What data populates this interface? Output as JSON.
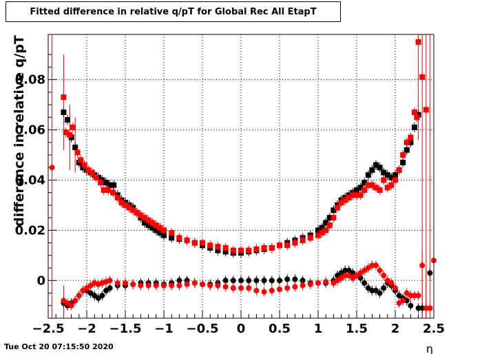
{
  "title": "Fitted difference in relative q/pT  for Global Rec All EtapT",
  "timestamp": "Tue Oct 20 07:15:50 2020",
  "colors": {
    "black_series": "#000000",
    "red_series": "#ff0000",
    "grid": "#000000"
  },
  "chart_data": {
    "type": "scatter",
    "title": "Fitted difference in relative q/pT  for Global Rec All EtapT",
    "xlabel": "η",
    "ylabel": "difference in relative q/pT",
    "xlim": [
      -2.5,
      2.5
    ],
    "ylim": [
      -0.015,
      0.098
    ],
    "xticks": [
      -2.5,
      -2,
      -1.5,
      -1,
      -0.5,
      0,
      0.5,
      1,
      1.5,
      2,
      2.5
    ],
    "xtick_labels": [
      "−2.5",
      "−2",
      "−1.5",
      "−1",
      "−0.5",
      "0",
      "0.5",
      "1",
      "1.5",
      "2",
      "2.5"
    ],
    "yticks": [
      0,
      0.02,
      0.04,
      0.06,
      0.08
    ],
    "ytick_labels": [
      "0",
      "0.02",
      "0.04",
      "0.06",
      "0.08"
    ],
    "grid": true,
    "series": [
      {
        "marker": "square",
        "color": "#000000",
        "points": [
          [
            -2.3,
            0.067
          ],
          [
            -2.25,
            0.064
          ],
          [
            -2.2,
            0.057
          ],
          [
            -2.15,
            0.053
          ],
          [
            -2.1,
            0.047
          ],
          [
            -2.05,
            0.045
          ],
          [
            -2.0,
            0.044
          ],
          [
            -1.95,
            0.043
          ],
          [
            -1.9,
            0.042
          ],
          [
            -1.85,
            0.041
          ],
          [
            -1.8,
            0.04
          ],
          [
            -1.75,
            0.039
          ],
          [
            -1.7,
            0.038
          ],
          [
            -1.65,
            0.038
          ],
          [
            -1.6,
            0.034
          ],
          [
            -1.55,
            0.032
          ],
          [
            -1.5,
            0.031
          ],
          [
            -1.45,
            0.03
          ],
          [
            -1.4,
            0.029
          ],
          [
            -1.35,
            0.027
          ],
          [
            -1.3,
            0.025
          ],
          [
            -1.25,
            0.023
          ],
          [
            -1.2,
            0.022
          ],
          [
            -1.15,
            0.021
          ],
          [
            -1.1,
            0.02
          ],
          [
            -1.05,
            0.019
          ],
          [
            -1.0,
            0.018
          ],
          [
            -0.9,
            0.017
          ],
          [
            -0.8,
            0.0165
          ],
          [
            -0.7,
            0.016
          ],
          [
            -0.6,
            0.015
          ],
          [
            -0.5,
            0.014
          ],
          [
            -0.4,
            0.013
          ],
          [
            -0.3,
            0.012
          ],
          [
            -0.2,
            0.0115
          ],
          [
            -0.1,
            0.011
          ],
          [
            0.0,
            0.011
          ],
          [
            0.1,
            0.0115
          ],
          [
            0.2,
            0.012
          ],
          [
            0.3,
            0.0125
          ],
          [
            0.4,
            0.013
          ],
          [
            0.5,
            0.014
          ],
          [
            0.6,
            0.015
          ],
          [
            0.7,
            0.016
          ],
          [
            0.8,
            0.017
          ],
          [
            0.9,
            0.018
          ],
          [
            1.0,
            0.02
          ],
          [
            1.05,
            0.021
          ],
          [
            1.1,
            0.023
          ],
          [
            1.15,
            0.025
          ],
          [
            1.2,
            0.028
          ],
          [
            1.25,
            0.03
          ],
          [
            1.3,
            0.032
          ],
          [
            1.35,
            0.033
          ],
          [
            1.4,
            0.034
          ],
          [
            1.45,
            0.035
          ],
          [
            1.5,
            0.036
          ],
          [
            1.55,
            0.037
          ],
          [
            1.6,
            0.039
          ],
          [
            1.65,
            0.042
          ],
          [
            1.7,
            0.044
          ],
          [
            1.75,
            0.046
          ],
          [
            1.8,
            0.045
          ],
          [
            1.85,
            0.043
          ],
          [
            1.9,
            0.042
          ],
          [
            1.95,
            0.041
          ],
          [
            2.0,
            0.042
          ],
          [
            2.05,
            0.044
          ],
          [
            2.1,
            0.047
          ],
          [
            2.15,
            0.052
          ],
          [
            2.2,
            0.055
          ],
          [
            2.25,
            0.061
          ],
          [
            2.3,
            0.066
          ]
        ]
      },
      {
        "marker": "square",
        "color": "#ff0000",
        "points": [
          [
            -2.3,
            0.073
          ],
          [
            -2.27,
            0.059
          ],
          [
            -2.22,
            0.058
          ],
          [
            -2.18,
            0.061
          ],
          [
            -2.12,
            0.051
          ],
          [
            -2.08,
            0.048
          ],
          [
            -2.03,
            0.046
          ],
          [
            -1.98,
            0.044
          ],
          [
            -1.93,
            0.043
          ],
          [
            -1.88,
            0.041
          ],
          [
            -1.82,
            0.039
          ],
          [
            -1.78,
            0.036
          ],
          [
            -1.72,
            0.036
          ],
          [
            -1.66,
            0.035
          ],
          [
            -1.6,
            0.033
          ],
          [
            -1.55,
            0.031
          ],
          [
            -1.5,
            0.03
          ],
          [
            -1.45,
            0.029
          ],
          [
            -1.4,
            0.028
          ],
          [
            -1.35,
            0.027
          ],
          [
            -1.3,
            0.026
          ],
          [
            -1.25,
            0.025
          ],
          [
            -1.2,
            0.024
          ],
          [
            -1.15,
            0.023
          ],
          [
            -1.1,
            0.022
          ],
          [
            -1.05,
            0.021
          ],
          [
            -1.0,
            0.02
          ],
          [
            -0.9,
            0.019
          ],
          [
            -0.8,
            0.017
          ],
          [
            -0.7,
            0.016
          ],
          [
            -0.6,
            0.015
          ],
          [
            -0.5,
            0.015
          ],
          [
            -0.4,
            0.014
          ],
          [
            -0.3,
            0.0135
          ],
          [
            -0.2,
            0.013
          ],
          [
            -0.1,
            0.012
          ],
          [
            0.0,
            0.012
          ],
          [
            0.1,
            0.012
          ],
          [
            0.2,
            0.0125
          ],
          [
            0.3,
            0.013
          ],
          [
            0.4,
            0.013
          ],
          [
            0.5,
            0.014
          ],
          [
            0.6,
            0.014
          ],
          [
            0.7,
            0.015
          ],
          [
            0.8,
            0.016
          ],
          [
            0.9,
            0.017
          ],
          [
            1.0,
            0.018
          ],
          [
            1.05,
            0.019
          ],
          [
            1.1,
            0.02
          ],
          [
            1.15,
            0.022
          ],
          [
            1.2,
            0.025
          ],
          [
            1.25,
            0.029
          ],
          [
            1.3,
            0.031
          ],
          [
            1.35,
            0.032
          ],
          [
            1.4,
            0.033
          ],
          [
            1.45,
            0.034
          ],
          [
            1.5,
            0.034
          ],
          [
            1.55,
            0.034
          ],
          [
            1.6,
            0.036
          ],
          [
            1.65,
            0.038
          ],
          [
            1.7,
            0.038
          ],
          [
            1.75,
            0.037
          ],
          [
            1.8,
            0.036
          ],
          [
            1.85,
            0.04
          ],
          [
            1.9,
            0.037
          ],
          [
            1.95,
            0.038
          ],
          [
            2.0,
            0.04
          ],
          [
            2.05,
            0.044
          ],
          [
            2.1,
            0.05
          ],
          [
            2.15,
            0.055
          ],
          [
            2.2,
            0.057
          ],
          [
            2.25,
            0.067
          ],
          [
            2.28,
            0.065
          ],
          [
            2.3,
            0.095
          ],
          [
            2.35,
            0.081
          ],
          [
            2.4,
            0.068
          ]
        ]
      },
      {
        "marker": "circle",
        "color": "#000000",
        "points": [
          [
            -2.3,
            -0.009
          ],
          [
            -2.25,
            -0.01
          ],
          [
            -2.2,
            -0.009
          ],
          [
            -2.15,
            -0.008
          ],
          [
            -2.1,
            -0.006
          ],
          [
            -2.05,
            -0.004
          ],
          [
            -2.0,
            -0.004
          ],
          [
            -1.95,
            -0.005
          ],
          [
            -1.9,
            -0.006
          ],
          [
            -1.85,
            -0.007
          ],
          [
            -1.8,
            -0.006
          ],
          [
            -1.75,
            -0.004
          ],
          [
            -1.7,
            -0.003
          ],
          [
            -1.6,
            -0.002
          ],
          [
            -1.5,
            -0.002
          ],
          [
            -1.4,
            -0.0015
          ],
          [
            -1.3,
            -0.001
          ],
          [
            -1.2,
            -0.001
          ],
          [
            -1.1,
            -0.001
          ],
          [
            -1.0,
            -0.0015
          ],
          [
            -0.9,
            -0.001
          ],
          [
            -0.8,
            0.0
          ],
          [
            -0.7,
            0.0
          ],
          [
            -0.6,
            -0.001
          ],
          [
            -0.5,
            -0.0015
          ],
          [
            -0.4,
            -0.0015
          ],
          [
            -0.3,
            -0.001
          ],
          [
            -0.2,
            0.0
          ],
          [
            -0.1,
            0.0
          ],
          [
            0.0,
            0.0
          ],
          [
            0.1,
            0.0
          ],
          [
            0.2,
            0.0
          ],
          [
            0.3,
            0.0
          ],
          [
            0.4,
            0.0
          ],
          [
            0.5,
            0.0
          ],
          [
            0.6,
            0.0005
          ],
          [
            0.7,
            0.0005
          ],
          [
            0.8,
            0.0
          ],
          [
            0.9,
            -0.001
          ],
          [
            1.0,
            -0.001
          ],
          [
            1.1,
            -0.001
          ],
          [
            1.2,
            0.0
          ],
          [
            1.25,
            0.002
          ],
          [
            1.3,
            0.003
          ],
          [
            1.35,
            0.004
          ],
          [
            1.4,
            0.004
          ],
          [
            1.45,
            0.003
          ],
          [
            1.5,
            0.002
          ],
          [
            1.55,
            0.001
          ],
          [
            1.6,
            -0.001
          ],
          [
            1.65,
            -0.003
          ],
          [
            1.7,
            -0.004
          ],
          [
            1.75,
            -0.004
          ],
          [
            1.8,
            -0.005
          ],
          [
            1.85,
            -0.003
          ],
          [
            1.9,
            -0.001
          ],
          [
            1.95,
            -0.002
          ],
          [
            2.0,
            -0.004
          ],
          [
            2.05,
            -0.006
          ],
          [
            2.1,
            -0.007
          ],
          [
            2.15,
            -0.008
          ],
          [
            2.2,
            -0.01
          ],
          [
            2.3,
            -0.011
          ],
          [
            2.35,
            -0.011
          ],
          [
            2.45,
            0.003
          ]
        ]
      },
      {
        "marker": "circle",
        "color": "#ff0000",
        "points": [
          [
            -2.45,
            0.045
          ],
          [
            -2.3,
            -0.008
          ],
          [
            -2.25,
            -0.009
          ],
          [
            -2.2,
            -0.01
          ],
          [
            -2.15,
            -0.008
          ],
          [
            -2.1,
            -0.006
          ],
          [
            -2.05,
            -0.004
          ],
          [
            -2.0,
            -0.003
          ],
          [
            -1.95,
            -0.002
          ],
          [
            -1.9,
            -0.001
          ],
          [
            -1.85,
            -0.0015
          ],
          [
            -1.8,
            -0.001
          ],
          [
            -1.75,
            -0.0005
          ],
          [
            -1.7,
            0.0
          ],
          [
            -1.6,
            -0.001
          ],
          [
            -1.5,
            -0.001
          ],
          [
            -1.4,
            -0.0015
          ],
          [
            -1.3,
            -0.002
          ],
          [
            -1.2,
            -0.002
          ],
          [
            -1.1,
            -0.002
          ],
          [
            -1.0,
            -0.002
          ],
          [
            -0.9,
            -0.002
          ],
          [
            -0.8,
            -0.002
          ],
          [
            -0.7,
            -0.0015
          ],
          [
            -0.6,
            -0.001
          ],
          [
            -0.5,
            -0.0015
          ],
          [
            -0.4,
            -0.002
          ],
          [
            -0.3,
            -0.002
          ],
          [
            -0.2,
            -0.0025
          ],
          [
            -0.1,
            -0.003
          ],
          [
            0.0,
            -0.003
          ],
          [
            0.1,
            -0.003
          ],
          [
            0.2,
            -0.004
          ],
          [
            0.3,
            -0.0045
          ],
          [
            0.4,
            -0.004
          ],
          [
            0.5,
            -0.0035
          ],
          [
            0.6,
            -0.003
          ],
          [
            0.7,
            -0.0025
          ],
          [
            0.8,
            -0.002
          ],
          [
            0.9,
            -0.0015
          ],
          [
            1.0,
            -0.001
          ],
          [
            1.1,
            -0.0005
          ],
          [
            1.2,
            -0.001
          ],
          [
            1.25,
            0.0
          ],
          [
            1.3,
            0.001
          ],
          [
            1.35,
            0.002
          ],
          [
            1.4,
            0.002
          ],
          [
            1.45,
            0.001
          ],
          [
            1.5,
            0.002
          ],
          [
            1.55,
            0.003
          ],
          [
            1.6,
            0.004
          ],
          [
            1.65,
            0.005
          ],
          [
            1.7,
            0.006
          ],
          [
            1.75,
            0.006
          ],
          [
            1.8,
            0.004
          ],
          [
            1.85,
            0.002
          ],
          [
            1.9,
            0.0
          ],
          [
            1.95,
            -0.001
          ],
          [
            2.0,
            -0.003
          ],
          [
            2.05,
            -0.009
          ],
          [
            2.1,
            -0.008
          ],
          [
            2.15,
            -0.005
          ],
          [
            2.2,
            -0.006
          ],
          [
            2.25,
            -0.006
          ],
          [
            2.3,
            -0.006
          ],
          [
            2.35,
            0.006
          ],
          [
            2.4,
            -0.011
          ],
          [
            2.45,
            -0.011
          ],
          [
            2.5,
            0.008
          ]
        ]
      }
    ],
    "error_bars": [
      [
        -2.45,
        -0.015,
        0.098
      ],
      [
        -2.3,
        0.052,
        0.09
      ],
      [
        -2.22,
        0.044,
        0.07
      ],
      [
        -2.15,
        0.043,
        0.065
      ],
      [
        2.3,
        0.056,
        0.098
      ],
      [
        2.35,
        -0.015,
        0.098
      ],
      [
        2.4,
        -0.015,
        0.098
      ],
      [
        2.45,
        -0.015,
        0.098
      ],
      [
        -2.3,
        -0.015,
        -0.002
      ],
      [
        2.35,
        -0.015,
        0.012
      ],
      [
        2.4,
        -0.015,
        0.005
      ]
    ]
  }
}
